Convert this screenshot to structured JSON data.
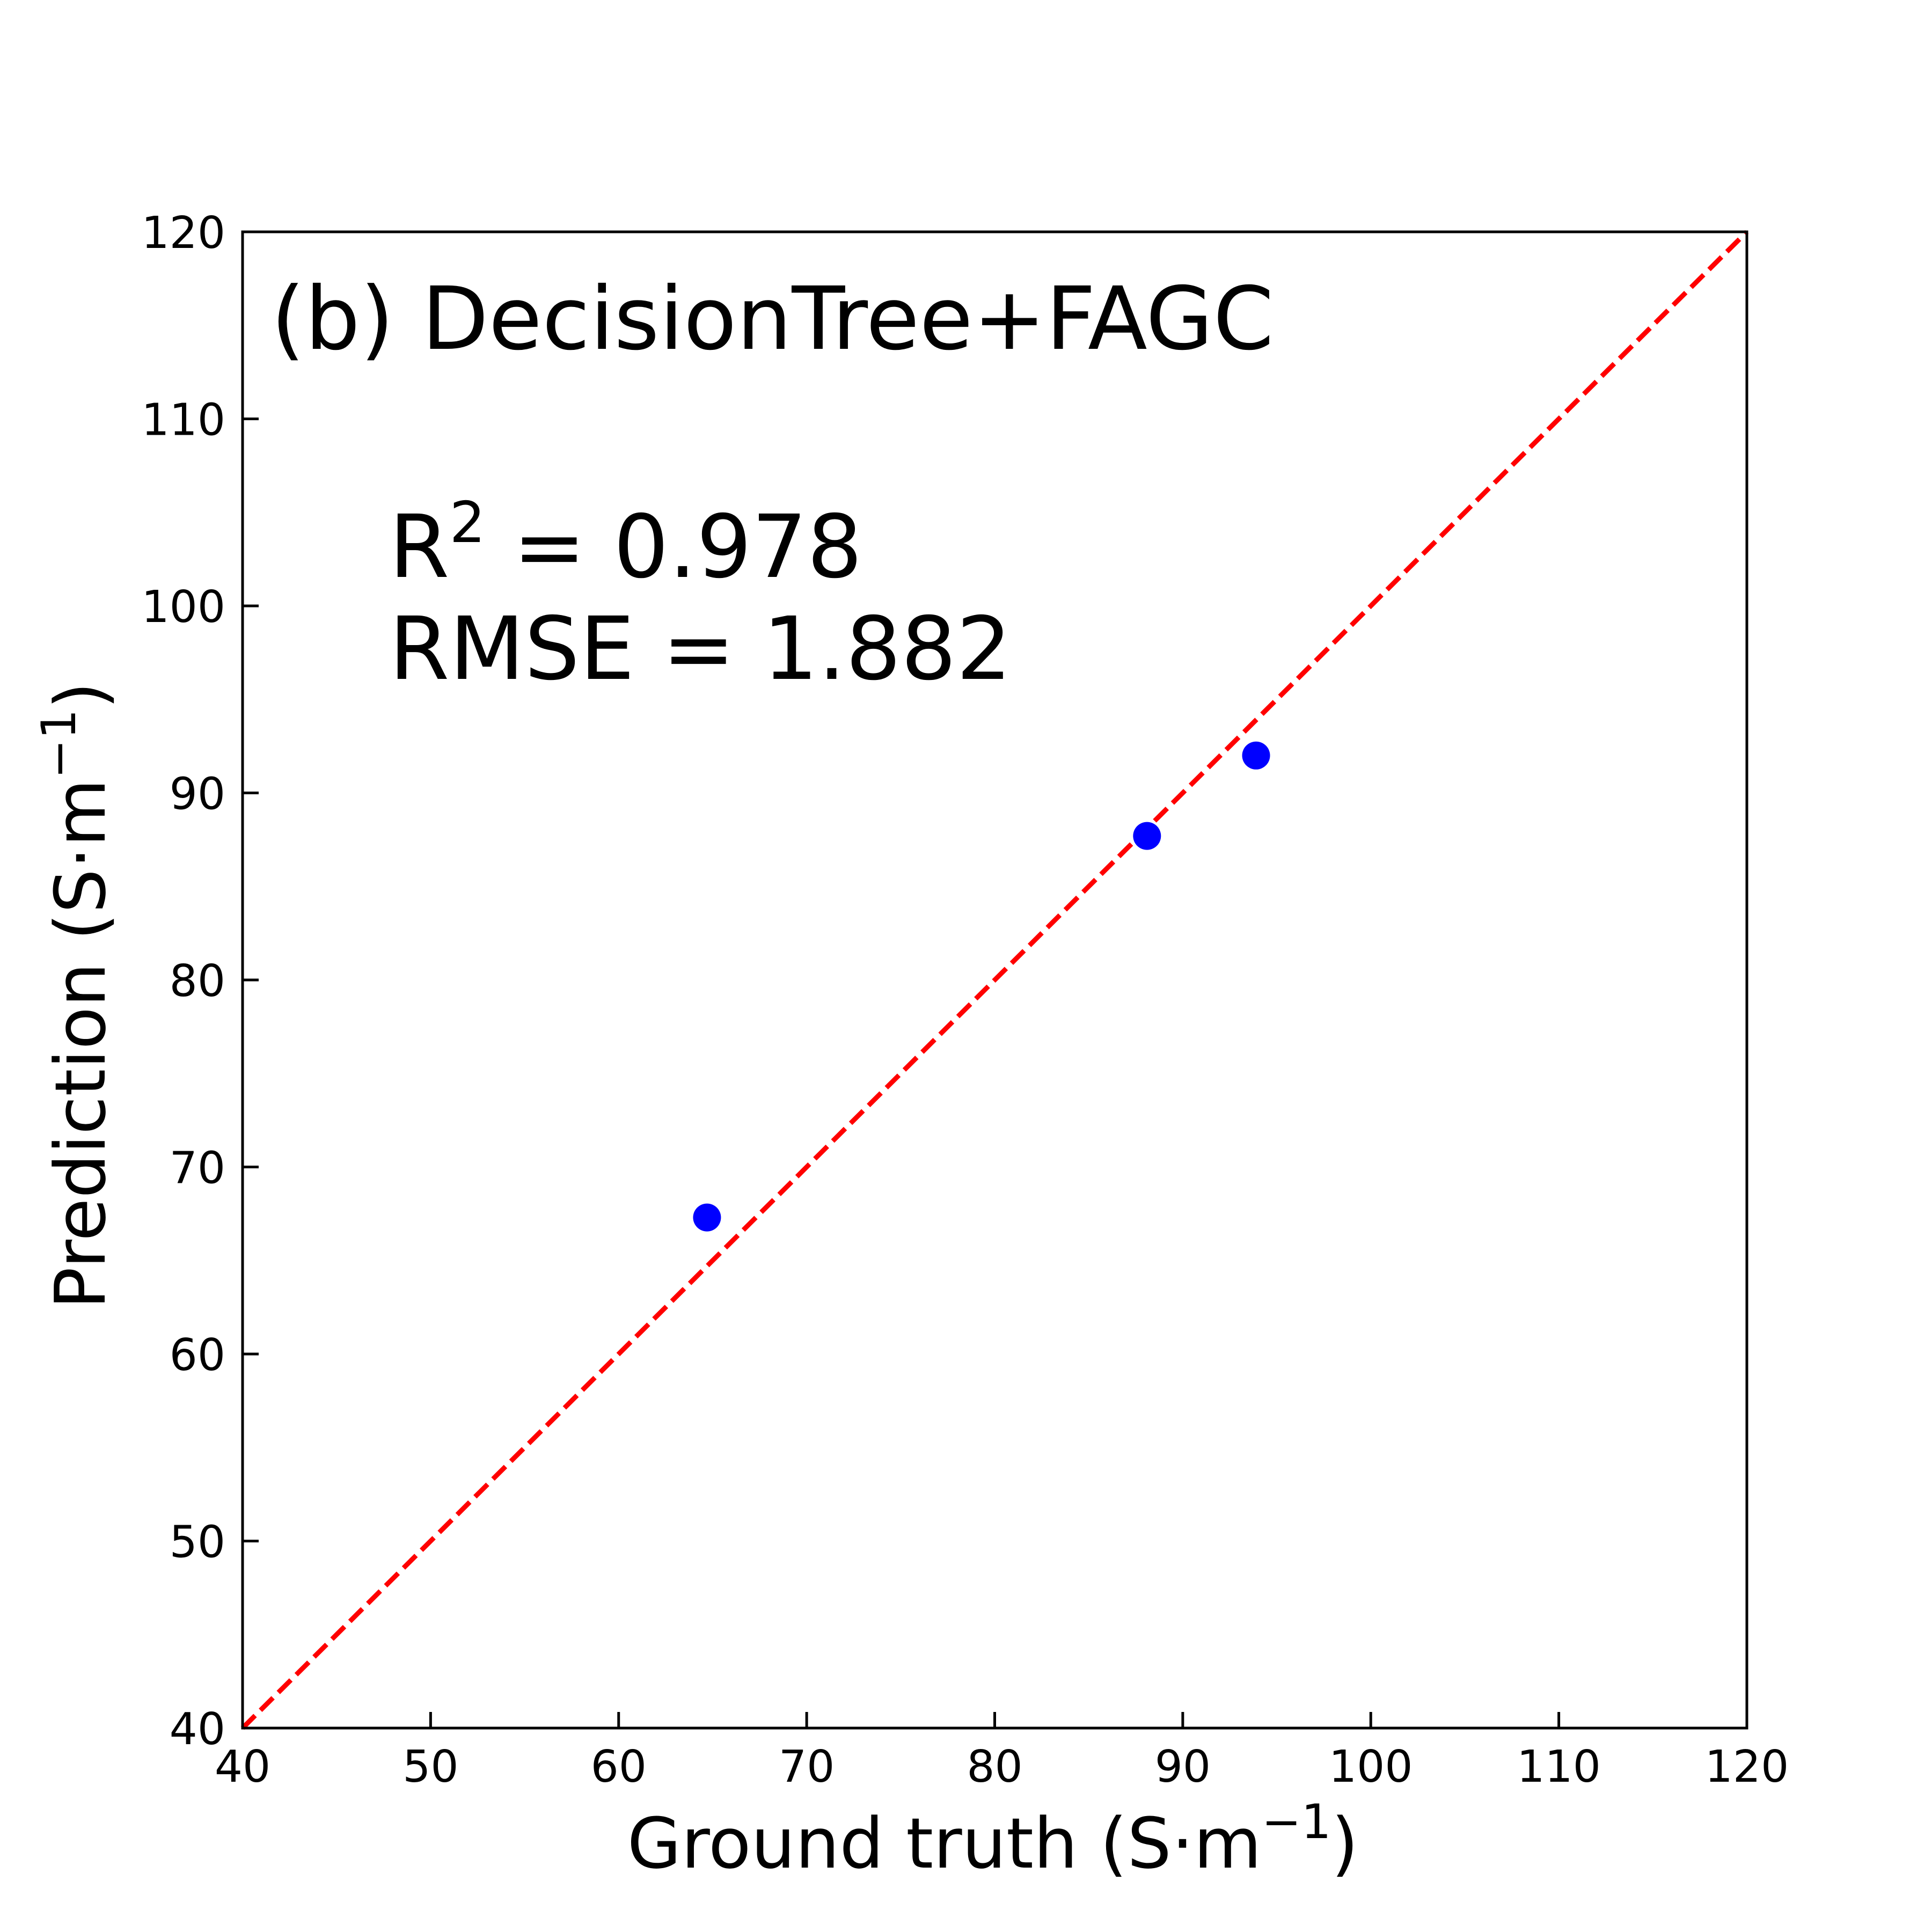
{
  "chart_data": {
    "type": "scatter",
    "title": "(b) DecisionTree+FAGC",
    "xlabel": "Ground truth (S·m",
    "xlabel_sup": "−1",
    "xlabel_end": ")",
    "ylabel": "Prediction (S·m",
    "ylabel_sup": "−1",
    "ylabel_end": ")",
    "xlim": [
      40,
      120
    ],
    "ylim": [
      40,
      120
    ],
    "xticks": [
      "40",
      "50",
      "60",
      "70",
      "80",
      "90",
      "100",
      "110",
      "120"
    ],
    "yticks": [
      "40",
      "50",
      "60",
      "70",
      "80",
      "90",
      "100",
      "110",
      "120"
    ],
    "grid": false,
    "points": [
      {
        "x": 64.7,
        "y": 67.3
      },
      {
        "x": 88.1,
        "y": 87.7
      },
      {
        "x": 93.9,
        "y": 92.0
      }
    ],
    "reference_line": {
      "x": [
        40,
        120
      ],
      "y": [
        40,
        120
      ],
      "style": "dashed"
    },
    "annotations": {
      "r2_prefix": "R",
      "r2_sup": "2",
      "r2_suffix": " =  0.978",
      "rmse": "RMSE = 1.882"
    },
    "colors": {
      "points": "#0000ff",
      "reference_line": "#ff0000",
      "axes": "#000000"
    }
  }
}
